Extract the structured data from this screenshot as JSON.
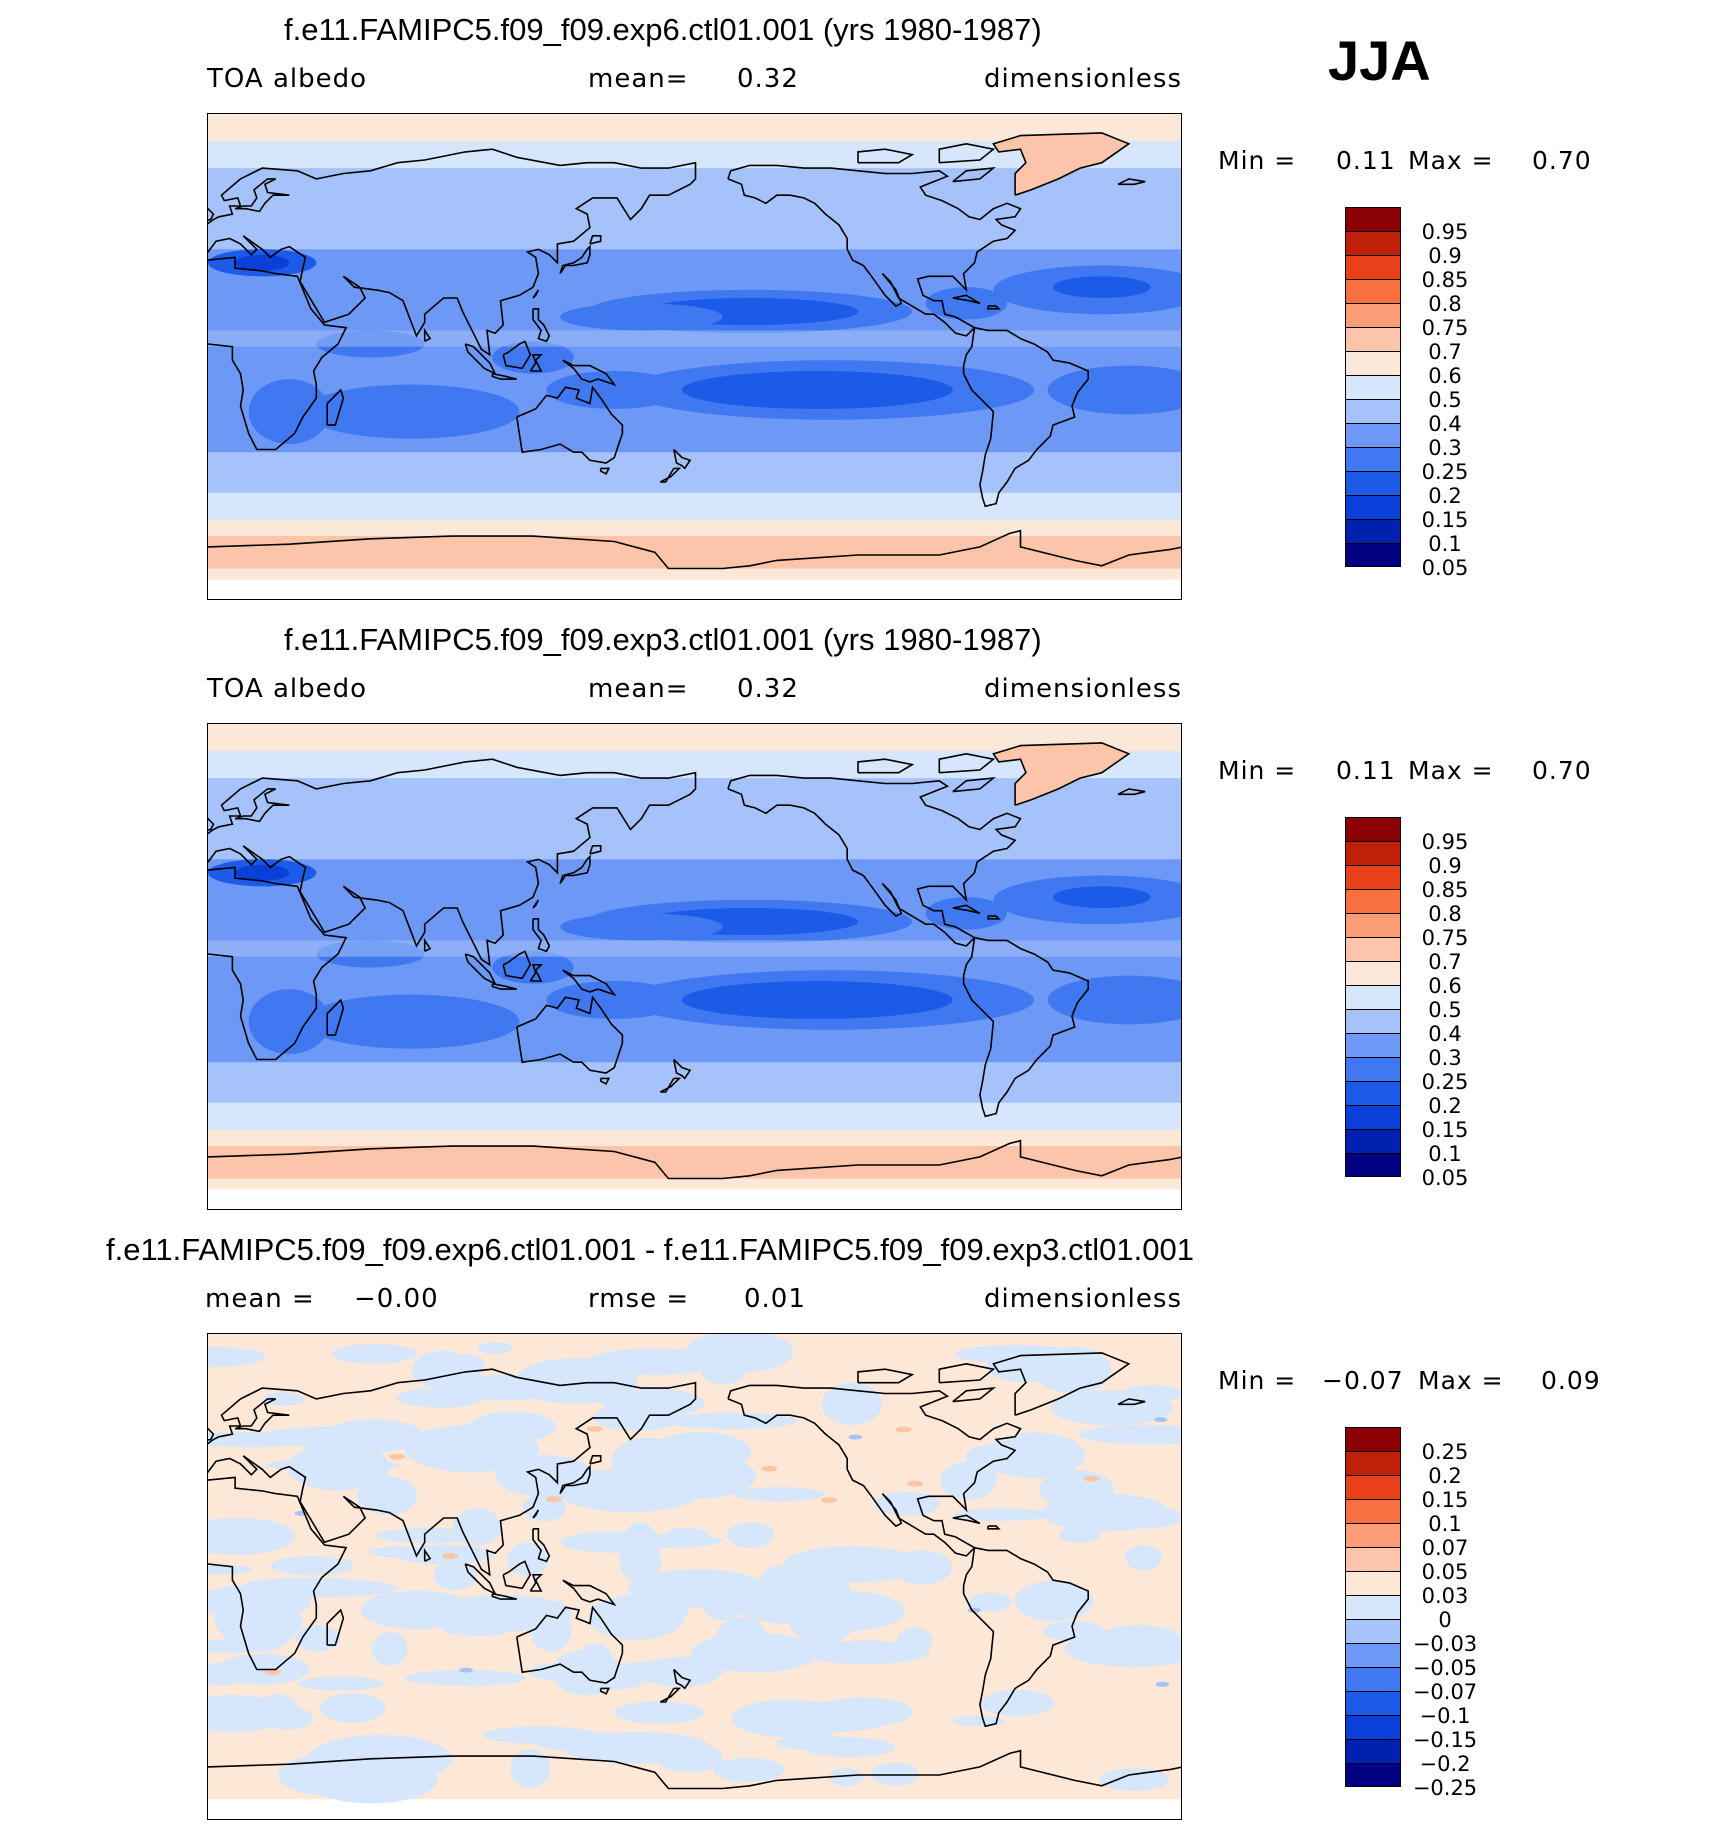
{
  "season": "JJA",
  "colors": {
    "abs_scale": [
      "#000080",
      "#0020b0",
      "#0a3fd8",
      "#1c5ae8",
      "#3f78f0",
      "#6e98f5",
      "#a6c2fa",
      "#d6e6fb",
      "#fbe8d8",
      "#fcc4a8",
      "#fc9d78",
      "#f97040",
      "#e84018",
      "#c02008",
      "#8b0000"
    ],
    "diff_scale": [
      "#000080",
      "#0020b0",
      "#0a3fd8",
      "#1c5ae8",
      "#3f78f0",
      "#6e98f5",
      "#a6c2fa",
      "#d6e6fb",
      "#fde8d8",
      "#fcc4a8",
      "#fc9d78",
      "#f97040",
      "#e84018",
      "#c02008",
      "#8b0000"
    ]
  },
  "panels": [
    {
      "title": "f.e11.FAMIPC5.f09_f09.exp6.ctl01.001 (yrs 1980-1987)",
      "variable": "TOA  albedo",
      "stat_label": "mean=",
      "stat_value": "0.32",
      "units": "dimensionless",
      "min_label": "Min  =",
      "min_value": "0.11",
      "max_label": "Max  =",
      "max_value": "0.70",
      "levels": [
        "0.95",
        "0.9",
        "0.85",
        "0.8",
        "0.75",
        "0.7",
        "0.6",
        "0.5",
        "0.4",
        "0.3",
        "0.25",
        "0.2",
        "0.15",
        "0.1",
        "0.05"
      ]
    },
    {
      "title": "f.e11.FAMIPC5.f09_f09.exp3.ctl01.001 (yrs 1980-1987)",
      "variable": "TOA  albedo",
      "stat_label": "mean=",
      "stat_value": "0.32",
      "units": "dimensionless",
      "min_label": "Min  =",
      "min_value": "0.11",
      "max_label": "Max  =",
      "max_value": "0.70",
      "levels": [
        "0.95",
        "0.9",
        "0.85",
        "0.8",
        "0.75",
        "0.7",
        "0.6",
        "0.5",
        "0.4",
        "0.3",
        "0.25",
        "0.2",
        "0.15",
        "0.1",
        "0.05"
      ]
    },
    {
      "title": "f.e11.FAMIPC5.f09_f09.exp6.ctl01.001 - f.e11.FAMIPC5.f09_f09.exp3.ctl01.001",
      "variable": "mean  =",
      "variable_value": "−0.00",
      "stat_label": "rmse  =",
      "stat_value": "0.01",
      "units": "dimensionless",
      "min_label": "Min  =",
      "min_value": "−0.07",
      "max_label": "Max  =",
      "max_value": "0.09",
      "levels": [
        "0.25",
        "0.2",
        "0.15",
        "0.1",
        "0.07",
        "0.05",
        "0.03",
        "0",
        "−0.03",
        "−0.05",
        "−0.07",
        "−0.1",
        "−0.15",
        "−0.2",
        "−0.25"
      ]
    }
  ]
}
